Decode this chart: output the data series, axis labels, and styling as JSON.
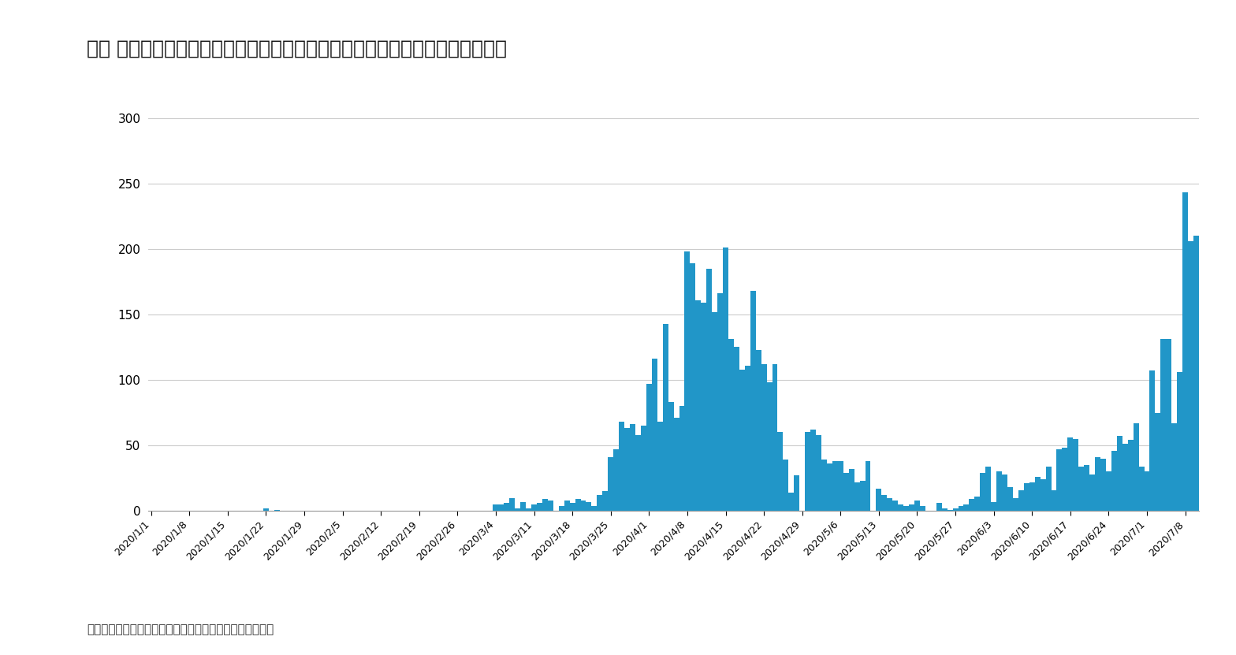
{
  "title": "図表 ３：東京都の新型コロナウイルス感染症新規患者に関する報告件数の推移",
  "footnote": "（出所）東京都のデータをもとにニッセイ基礎研究所作成",
  "bar_color": "#2196c8",
  "background_color": "#ffffff",
  "ylim": [
    0,
    300
  ],
  "yticks": [
    0,
    50,
    100,
    150,
    200,
    250,
    300
  ],
  "dates": [
    "2020/1/1",
    "2020/1/2",
    "2020/1/3",
    "2020/1/4",
    "2020/1/5",
    "2020/1/6",
    "2020/1/7",
    "2020/1/8",
    "2020/1/9",
    "2020/1/10",
    "2020/1/11",
    "2020/1/12",
    "2020/1/13",
    "2020/1/14",
    "2020/1/15",
    "2020/1/16",
    "2020/1/17",
    "2020/1/18",
    "2020/1/19",
    "2020/1/20",
    "2020/1/21",
    "2020/1/22",
    "2020/1/23",
    "2020/1/24",
    "2020/1/25",
    "2020/1/26",
    "2020/1/27",
    "2020/1/28",
    "2020/1/29",
    "2020/1/30",
    "2020/1/31",
    "2020/2/1",
    "2020/2/2",
    "2020/2/3",
    "2020/2/4",
    "2020/2/5",
    "2020/2/6",
    "2020/2/7",
    "2020/2/8",
    "2020/2/9",
    "2020/2/10",
    "2020/2/11",
    "2020/2/12",
    "2020/2/13",
    "2020/2/14",
    "2020/2/15",
    "2020/2/16",
    "2020/2/17",
    "2020/2/18",
    "2020/2/19",
    "2020/2/20",
    "2020/2/21",
    "2020/2/22",
    "2020/2/23",
    "2020/2/24",
    "2020/2/25",
    "2020/2/26",
    "2020/2/27",
    "2020/2/28",
    "2020/2/29",
    "2020/3/1",
    "2020/3/2",
    "2020/3/3",
    "2020/3/4",
    "2020/3/5",
    "2020/3/6",
    "2020/3/7",
    "2020/3/8",
    "2020/3/9",
    "2020/3/10",
    "2020/3/11",
    "2020/3/12",
    "2020/3/13",
    "2020/3/14",
    "2020/3/15",
    "2020/3/16",
    "2020/3/17",
    "2020/3/18",
    "2020/3/19",
    "2020/3/20",
    "2020/3/21",
    "2020/3/22",
    "2020/3/23",
    "2020/3/24",
    "2020/3/25",
    "2020/3/26",
    "2020/3/27",
    "2020/3/28",
    "2020/3/29",
    "2020/3/30",
    "2020/3/31",
    "2020/4/1",
    "2020/4/2",
    "2020/4/3",
    "2020/4/4",
    "2020/4/5",
    "2020/4/6",
    "2020/4/7",
    "2020/4/8",
    "2020/4/9",
    "2020/4/10",
    "2020/4/11",
    "2020/4/12",
    "2020/4/13",
    "2020/4/14",
    "2020/4/15",
    "2020/4/16",
    "2020/4/17",
    "2020/4/18",
    "2020/4/19",
    "2020/4/20",
    "2020/4/21",
    "2020/4/22",
    "2020/4/23",
    "2020/4/24",
    "2020/4/25",
    "2020/4/26",
    "2020/4/27",
    "2020/4/28",
    "2020/4/29",
    "2020/4/30",
    "2020/5/1",
    "2020/5/2",
    "2020/5/3",
    "2020/5/4",
    "2020/5/5",
    "2020/5/6",
    "2020/5/7",
    "2020/5/8",
    "2020/5/9",
    "2020/5/10",
    "2020/5/11",
    "2020/5/12",
    "2020/5/13",
    "2020/5/14",
    "2020/5/15",
    "2020/5/16",
    "2020/5/17",
    "2020/5/18",
    "2020/5/19",
    "2020/5/20",
    "2020/5/21",
    "2020/5/22",
    "2020/5/23",
    "2020/5/24",
    "2020/5/25",
    "2020/5/26",
    "2020/5/27",
    "2020/5/28",
    "2020/5/29",
    "2020/5/30",
    "2020/5/31",
    "2020/6/1",
    "2020/6/2",
    "2020/6/3",
    "2020/6/4",
    "2020/6/5",
    "2020/6/6",
    "2020/6/7",
    "2020/6/8",
    "2020/6/9",
    "2020/6/10",
    "2020/6/11",
    "2020/6/12",
    "2020/6/13",
    "2020/6/14",
    "2020/6/15",
    "2020/6/16",
    "2020/6/17",
    "2020/6/18",
    "2020/6/19",
    "2020/6/20",
    "2020/6/21",
    "2020/6/22",
    "2020/6/23",
    "2020/6/24",
    "2020/6/25",
    "2020/6/26",
    "2020/6/27",
    "2020/6/28",
    "2020/6/29",
    "2020/6/30",
    "2020/7/1",
    "2020/7/2",
    "2020/7/3",
    "2020/7/4",
    "2020/7/5",
    "2020/7/6",
    "2020/7/7",
    "2020/7/8",
    "2020/7/9",
    "2020/7/10"
  ],
  "values": [
    0,
    0,
    0,
    0,
    0,
    0,
    0,
    0,
    0,
    0,
    0,
    0,
    0,
    0,
    0,
    0,
    0,
    0,
    0,
    0,
    0,
    2,
    0,
    1,
    0,
    0,
    0,
    0,
    0,
    0,
    0,
    0,
    0,
    0,
    0,
    0,
    0,
    0,
    0,
    0,
    0,
    0,
    0,
    0,
    0,
    0,
    0,
    0,
    0,
    0,
    0,
    0,
    0,
    0,
    0,
    0,
    0,
    0,
    0,
    0,
    0,
    0,
    0,
    5,
    5,
    6,
    10,
    2,
    7,
    2,
    5,
    6,
    9,
    8,
    0,
    4,
    8,
    6,
    9,
    8,
    7,
    4,
    12,
    15,
    41,
    47,
    68,
    63,
    66,
    58,
    65,
    97,
    116,
    68,
    143,
    83,
    71,
    80,
    198,
    189,
    161,
    159,
    185,
    152,
    166,
    201,
    131,
    125,
    108,
    111,
    168,
    123,
    112,
    98,
    112,
    60,
    39,
    14,
    27,
    0,
    60,
    62,
    58,
    39,
    36,
    38,
    38,
    29,
    32,
    22,
    23,
    38,
    0,
    17,
    12,
    10,
    8,
    5,
    4,
    5,
    8,
    4,
    0,
    0,
    6,
    2,
    1,
    2,
    4,
    5,
    9,
    11,
    29,
    34,
    7,
    30,
    28,
    18,
    10,
    16,
    21,
    22,
    26,
    24,
    34,
    16,
    47,
    48,
    56,
    55,
    34,
    35,
    28,
    41,
    40,
    30,
    46,
    57,
    51,
    54,
    67,
    34,
    30,
    107,
    75,
    131,
    131,
    67,
    106,
    243,
    206,
    210
  ],
  "xtick_labels": [
    "2020/1/1",
    "2020/1/8",
    "2020/1/15",
    "2020/1/22",
    "2020/1/29",
    "2020/2/5",
    "2020/2/12",
    "2020/2/19",
    "2020/2/26",
    "2020/3/4",
    "2020/3/11",
    "2020/3/18",
    "2020/3/25",
    "2020/4/1",
    "2020/4/8",
    "2020/4/15",
    "2020/4/22",
    "2020/4/29",
    "2020/5/6",
    "2020/5/13",
    "2020/5/20",
    "2020/5/27",
    "2020/6/3",
    "2020/6/10",
    "2020/6/17",
    "2020/6/24",
    "2020/7/1",
    "2020/7/8"
  ]
}
